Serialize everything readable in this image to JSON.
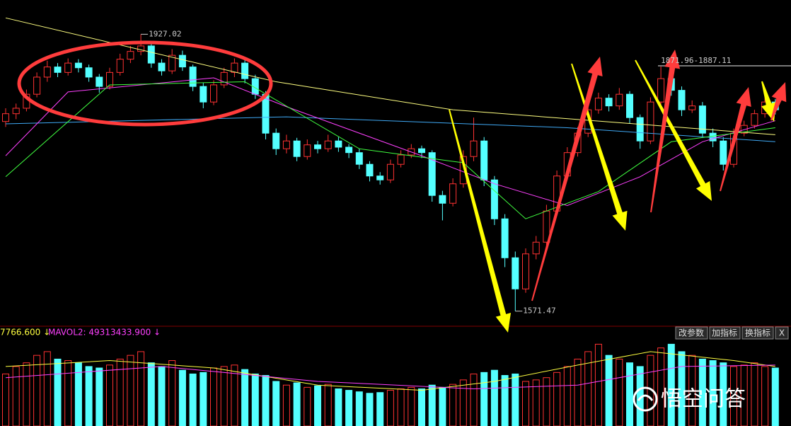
{
  "chart_data": {
    "type": "candlestick",
    "open": [
      1815,
      1825,
      1832,
      1850,
      1872,
      1885,
      1878,
      1890,
      1884,
      1872,
      1860,
      1878,
      1895,
      1905,
      1912,
      1890,
      1880,
      1900,
      1885,
      1860,
      1840,
      1862,
      1878,
      1890,
      1870,
      1850,
      1800,
      1780,
      1790,
      1770,
      1785,
      1780,
      1790,
      1782,
      1775,
      1760,
      1745,
      1740,
      1760,
      1772,
      1780,
      1775,
      1720,
      1710,
      1735,
      1770,
      1790,
      1740,
      1690,
      1640,
      1600,
      1645,
      1660,
      1700,
      1745,
      1775,
      1800,
      1830,
      1845,
      1835,
      1850,
      1820,
      1790,
      1840,
      1870,
      1855,
      1830,
      1835,
      1800,
      1790,
      1760,
      1800,
      1810,
      1825,
      1840
    ],
    "high": [
      1832,
      1838,
      1856,
      1878,
      1893,
      1890,
      1896,
      1895,
      1888,
      1876,
      1884,
      1902,
      1912,
      1927.02,
      1916,
      1895,
      1908,
      1906,
      1888,
      1865,
      1868,
      1884,
      1896,
      1894,
      1875,
      1854,
      1806,
      1798,
      1794,
      1792,
      1790,
      1798,
      1795,
      1786,
      1780,
      1764,
      1750,
      1766,
      1778,
      1786,
      1784,
      1778,
      1726,
      1742,
      1778,
      1820,
      1795,
      1745,
      1696,
      1648,
      1652,
      1668,
      1708,
      1752,
      1782,
      1808,
      1836,
      1852,
      1850,
      1858,
      1854,
      1824,
      1846,
      1887.11,
      1875,
      1860,
      1842,
      1840,
      1806,
      1795,
      1806,
      1816,
      1830,
      1848,
      1844
    ],
    "low": [
      1808,
      1818,
      1828,
      1846,
      1866,
      1872,
      1874,
      1878,
      1866,
      1852,
      1856,
      1874,
      1890,
      1900,
      1884,
      1874,
      1876,
      1880,
      1854,
      1832,
      1836,
      1858,
      1872,
      1864,
      1844,
      1792,
      1772,
      1774,
      1764,
      1766,
      1774,
      1776,
      1776,
      1768,
      1754,
      1738,
      1734,
      1736,
      1756,
      1768,
      1768,
      1712,
      1688,
      1706,
      1730,
      1764,
      1732,
      1682,
      1628,
      1571.47,
      1595,
      1638,
      1655,
      1695,
      1740,
      1770,
      1795,
      1825,
      1828,
      1830,
      1812,
      1780,
      1786,
      1836,
      1848,
      1822,
      1826,
      1794,
      1782,
      1752,
      1756,
      1796,
      1806,
      1820,
      1824
    ],
    "close": [
      1825,
      1832,
      1850,
      1872,
      1885,
      1878,
      1890,
      1884,
      1872,
      1860,
      1878,
      1895,
      1905,
      1912,
      1890,
      1880,
      1900,
      1885,
      1860,
      1840,
      1862,
      1878,
      1890,
      1870,
      1850,
      1800,
      1780,
      1790,
      1770,
      1785,
      1780,
      1790,
      1782,
      1775,
      1760,
      1745,
      1740,
      1760,
      1772,
      1780,
      1775,
      1720,
      1710,
      1735,
      1770,
      1790,
      1740,
      1690,
      1640,
      1600,
      1645,
      1660,
      1700,
      1745,
      1775,
      1800,
      1830,
      1845,
      1835,
      1850,
      1820,
      1790,
      1840,
      1870,
      1855,
      1830,
      1835,
      1800,
      1790,
      1760,
      1800,
      1810,
      1825,
      1840,
      1830
    ],
    "up_color": "#ff3232",
    "down_color": "#54ffff",
    "ylim": [
      1553,
      1971
    ],
    "lines": [
      {
        "color": "#ffff80",
        "x": [
          0,
          26,
          43,
          74
        ],
        "values": [
          1948,
          1866,
          1830,
          1798
        ]
      },
      {
        "color": "#3fa9f5",
        "x": [
          0,
          27,
          54,
          74
        ],
        "values": [
          1812,
          1821,
          1807,
          1789
        ]
      },
      {
        "color": "#ff40ff",
        "x": [
          0,
          6,
          20,
          27,
          40,
          47,
          54,
          61,
          67,
          74
        ],
        "values": [
          1771,
          1853,
          1871,
          1834,
          1771,
          1735,
          1707,
          1744,
          1789,
          1816
        ]
      },
      {
        "color": "#40ff40",
        "x": [
          0,
          10,
          23,
          34,
          44,
          50,
          57,
          64,
          74
        ],
        "values": [
          1744,
          1862,
          1866,
          1780,
          1762,
          1690,
          1725,
          1789,
          1807
        ]
      }
    ],
    "annotations": [
      {
        "x": 13,
        "value": 1927.02
      },
      {
        "x": 49,
        "value": 1571.47
      }
    ],
    "range_label": {
      "x": 63,
      "text": "1871.96-1887.11"
    },
    "volume": {
      "values": [
        70000000,
        80000000,
        85000000,
        95000000,
        100000000,
        90000000,
        88000000,
        85000000,
        80000000,
        78000000,
        82000000,
        90000000,
        95000000,
        100000000,
        85000000,
        80000000,
        88000000,
        75000000,
        70000000,
        72000000,
        78000000,
        80000000,
        82000000,
        76000000,
        70000000,
        68000000,
        60000000,
        55000000,
        58000000,
        52000000,
        54000000,
        56000000,
        50000000,
        48000000,
        46000000,
        44000000,
        45000000,
        48000000,
        50000000,
        52000000,
        50000000,
        55000000,
        52000000,
        56000000,
        62000000,
        70000000,
        72000000,
        75000000,
        68000000,
        70000000,
        60000000,
        62000000,
        65000000,
        72000000,
        80000000,
        90000000,
        100000000,
        110000000,
        95000000,
        90000000,
        85000000,
        80000000,
        95000000,
        105000000,
        110000000,
        100000000,
        95000000,
        90000000,
        88000000,
        85000000,
        80000000,
        82000000,
        85000000,
        80000000,
        78000000
      ],
      "ylim": [
        0,
        118000000
      ],
      "lines": [
        {
          "color": "#ffff40",
          "x": [
            0,
            10,
            20,
            30,
            40,
            47,
            55,
            62,
            70,
            74
          ],
          "values": [
            80000000,
            88000000,
            78000000,
            55000000,
            48000000,
            60000000,
            82000000,
            100000000,
            88000000,
            80000000
          ]
        },
        {
          "color": "#ff40ff",
          "x": [
            0,
            15,
            30,
            45,
            55,
            65,
            74
          ],
          "values": [
            65000000,
            80000000,
            60000000,
            50000000,
            55000000,
            80000000,
            82000000
          ]
        }
      ],
      "labels": [
        "7766.600 ↓",
        "MAVOL2: 49313433.900 ↓"
      ]
    }
  },
  "toolbar": {
    "buttons": [
      "改参数",
      "加指标",
      "换指标",
      "X"
    ]
  },
  "watermark": "悟空问答"
}
